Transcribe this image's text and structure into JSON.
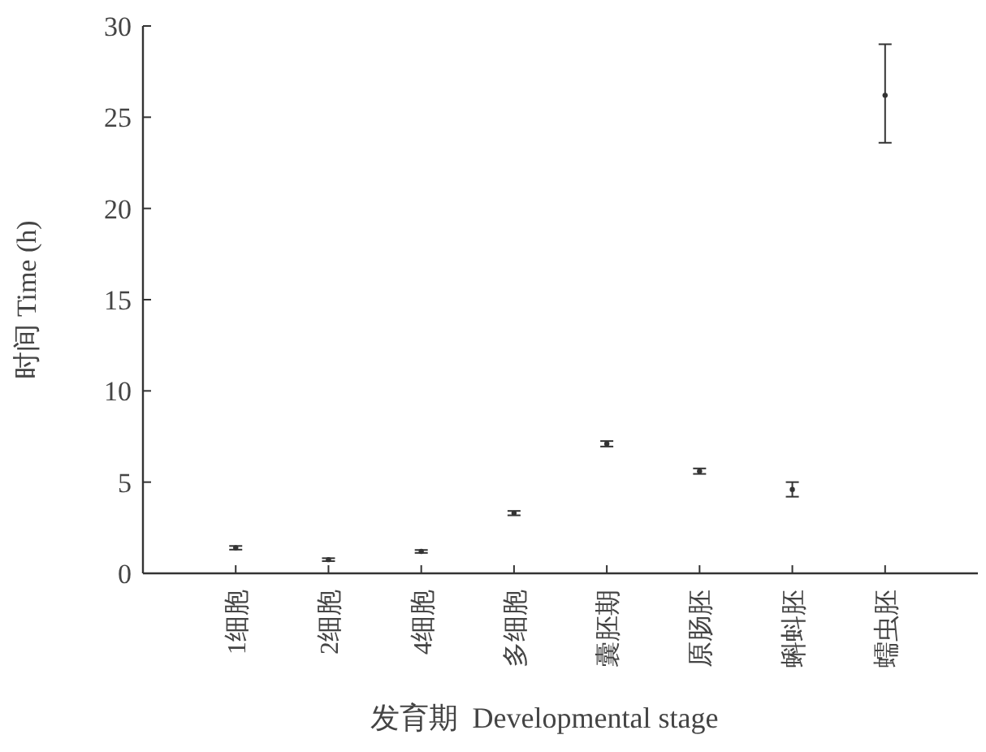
{
  "chart_data": {
    "type": "scatter",
    "xlabel": "发育期  Developmental stage",
    "ylabel": "时间 Time (h)",
    "categories": [
      "1细胞",
      "2细胞",
      "4细胞",
      "多细胞",
      "囊胚期",
      "原肠胚",
      "蝌蚪胚",
      "蠕虫胚"
    ],
    "series": [
      {
        "color": "#333333",
        "values": [
          1.4,
          0.75,
          1.2,
          3.3,
          7.1,
          5.6,
          4.6,
          26.2
        ],
        "errors": [
          0.1,
          0.08,
          0.08,
          0.12,
          0.15,
          0.15,
          0.4,
          [
            23.6,
            29.0
          ]
        ]
      }
    ],
    "ylim": [
      0,
      30
    ],
    "yticks": [
      0,
      5,
      10,
      15,
      20,
      25,
      30
    ],
    "grid": false,
    "marker": "circle"
  }
}
